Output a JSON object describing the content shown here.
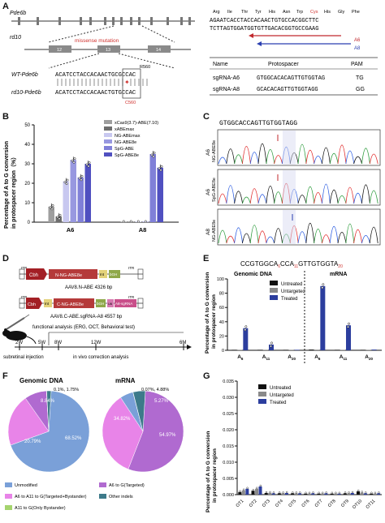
{
  "labels": {
    "a": "A",
    "b": "B",
    "c": "C",
    "d": "D",
    "e": "E",
    "f": "F",
    "g": "G"
  },
  "panel_a": {
    "gene": "Pde6b",
    "allele": "rd10",
    "mutation_label": "missense mutation",
    "exons": [
      "12",
      "13",
      "14"
    ],
    "wt_label": "WT-Pde6b",
    "rd10_label": "rd10-Pde6b",
    "wt_seq": "ACATCCTACCACAACTGCGCCAC",
    "rd10_seq": "ACATCCTACCACAACTGTGCCAC",
    "r560": "R560",
    "c560": "C560",
    "aa": [
      "Arg",
      "Ile",
      "Thr",
      "Tyr",
      "His",
      "Asn",
      "Trp",
      "Cys",
      "His",
      "Gly",
      "Phe"
    ],
    "seq_top": "AGAATCACCTACCACAACTGTGCCACGGCTTC",
    "seq_bot": "TCTTAGTGGATGGTGTTGACACGGTGCCGAAG",
    "guide_a6": "A6",
    "guide_a8": "A8",
    "table_headers": [
      "Name",
      "Protospacer",
      "PAM"
    ],
    "table_rows": [
      {
        "name": "sgRNA-A6",
        "protospacer": "GTGGCACACAGTTGTGGTAG",
        "pam": "TG"
      },
      {
        "name": "sgRNA-A8",
        "protospacer": "GCACACAGTTGTGGTAGG",
        "pam": "GG"
      }
    ]
  },
  "panel_b": {
    "ylabel_1": "Percentage of A to G conversion",
    "ylabel_2": "in protospacer region（%）",
    "yticks": [
      "0",
      "10",
      "20",
      "30",
      "40",
      "50"
    ],
    "groups": [
      "A6",
      "A8"
    ],
    "legend": [
      "xCas9(3.7)-ABE(7.10)",
      "xABEmax",
      "NG-ABEmax",
      "NG-ABE8e",
      "SpG-ABE",
      "SpG-ABE8e"
    ],
    "colors": [
      "#9e9e9e",
      "#6e6e6e",
      "#c8c8f0",
      "#9898e0",
      "#8080d8",
      "#5050c0"
    ]
  },
  "panel_c": {
    "seq": "GTGGCACCAGTTGTGGTAGG",
    "rows": [
      {
        "group": "A6",
        "name": "NG-ABE8e"
      },
      {
        "group": "A6",
        "name": "SpG-ABE8e"
      },
      {
        "group": "A8",
        "name": "NG-ABE8e"
      }
    ]
  },
  "panel_d": {
    "itr": "ITR",
    "cbh": "Cbh",
    "vec1_parts": [
      "N-NG-ABE8e",
      "Int",
      "bGH"
    ],
    "vec1_caption": "AAV8.N-ABE 4326 bp",
    "vec2_parts": [
      "Int",
      "C-NG-ABE8e",
      "bGH",
      "U6",
      "A8-sgRNA"
    ],
    "vec2_caption": "AAV8.C-ABE.sgRNA-A8 4557 bp",
    "analysis": "functional analysis (ERG, OCT, Behavioral test)",
    "timepoints": [
      "2W",
      "5W",
      "8W",
      "12W",
      "6M"
    ],
    "injection": "subretinal injection",
    "in_vivo": "in vivo correction analysis"
  },
  "panel_e": {
    "seq_prefix": "CCGTGGCA",
    "seq_sub1": "6",
    "seq_mid": "CCA",
    "seq_sub2": "11",
    "seq_mid2": "GTTGTGGTA",
    "seq_sub3": "20",
    "title_dna": "Genomic DNA",
    "title_rna": "mRNA",
    "ylabel_1": "Percentage of A to G conversion",
    "ylabel_2": "in protospacer region",
    "yticks": [
      "0",
      "20",
      "40",
      "60",
      "80",
      "100"
    ],
    "xgroups": [
      "A6",
      "A11",
      "A20",
      "A6",
      "A11",
      "A20"
    ],
    "legend": [
      "Untreated",
      "Untargeted",
      "Treated"
    ],
    "colors": [
      "#111111",
      "#8a8a8a",
      "#2c3e9e"
    ]
  },
  "panel_f": {
    "title_dna": "Genomic DNA",
    "title_rna": "mRNA",
    "dna_pcts": [
      "68.52%",
      "20.79%",
      "8.84%",
      "0.1%, 1.75%"
    ],
    "rna_pcts": [
      "54.97%",
      "34.82%",
      "5.27%",
      "0.07%, 4.88%"
    ],
    "legend": [
      "Unmodified",
      "A6 to G(Targeted)",
      "A6 to A11 to G(Targeted+Bystander)",
      "A11 to G(Only Bystander)",
      "Other indels"
    ],
    "colors": [
      "#7aa0d8",
      "#b06ad0",
      "#e884e8",
      "#a5d46e",
      "#3d7a8a"
    ]
  },
  "panel_g": {
    "ylabel_1": "Percentage of A to G conversion",
    "ylabel_2": "in protospacer region",
    "yticks": [
      "0.000",
      "0.005",
      "0.010",
      "0.015",
      "0.020",
      "0.025",
      "0.030",
      "0.035"
    ],
    "xgroups": [
      "OT1",
      "OT2",
      "OT3",
      "OT4",
      "OT5",
      "OT6",
      "OT7",
      "OT8",
      "OT9",
      "OT10",
      "OT11"
    ],
    "legend": [
      "Untreated",
      "Untargeted",
      "Treated"
    ],
    "colors": [
      "#111111",
      "#8a8a8a",
      "#2c3e9e"
    ]
  },
  "chart_data": [
    {
      "type": "bar",
      "categories": [
        "A6",
        "A8"
      ],
      "ylim": [
        0,
        50
      ],
      "series": [
        {
          "name": "xCas9(3.7)-ABE(7.10)",
          "values": [
            8,
            0
          ]
        },
        {
          "name": "xABEmax",
          "values": [
            3,
            0
          ]
        },
        {
          "name": "NG-ABEmax",
          "values": [
            21,
            0
          ]
        },
        {
          "name": "NG-ABE8e",
          "values": [
            32,
            0
          ]
        },
        {
          "name": "SpG-ABE",
          "values": [
            23,
            35
          ]
        },
        {
          "name": "SpG-ABE8e",
          "values": [
            30,
            28
          ]
        }
      ]
    },
    {
      "type": "bar",
      "categories": [
        "A6",
        "A11",
        "A20",
        "A6",
        "A11",
        "A20"
      ],
      "ylim": [
        0,
        100
      ],
      "series": [
        {
          "name": "Untreated",
          "values": [
            0.3,
            0.2,
            0.2,
            1,
            0.5,
            0.3
          ]
        },
        {
          "name": "Untargeted",
          "values": [
            0.3,
            0.2,
            0.2,
            0.8,
            0.4,
            0.3
          ]
        },
        {
          "name": "Treated",
          "values": [
            31,
            8,
            0.5,
            90,
            35,
            1
          ]
        }
      ]
    },
    {
      "type": "pie",
      "title": "Genomic DNA",
      "categories": [
        "Unmodified",
        "A6 to A11 to G(Targeted+Bystander)",
        "A6 to G(Targeted)",
        "A11 to G(Only Bystander)",
        "Other indels"
      ],
      "values": [
        68.52,
        20.79,
        8.84,
        0.1,
        1.75
      ]
    },
    {
      "type": "pie",
      "title": "mRNA",
      "categories": [
        "A6 to G(Targeted)",
        "A6 to A11 to G(Targeted+Bystander)",
        "Unmodified",
        "A11 to G(Only Bystander)",
        "Other indels"
      ],
      "values": [
        54.97,
        34.82,
        5.27,
        0.07,
        4.88
      ]
    },
    {
      "type": "bar",
      "categories": [
        "OT1",
        "OT2",
        "OT3",
        "OT4",
        "OT5",
        "OT6",
        "OT7",
        "OT8",
        "OT9",
        "OT10",
        "OT11"
      ],
      "ylim": [
        0,
        0.035
      ],
      "series": [
        {
          "name": "Untreated",
          "values": [
            0.0008,
            0.0012,
            0.0005,
            0.0004,
            0.0004,
            0.0003,
            0.0003,
            0.0003,
            0.0004,
            0.001,
            0.0003
          ]
        },
        {
          "name": "Untargeted",
          "values": [
            0.0013,
            0.0018,
            0.0005,
            0.0004,
            0.0004,
            0.0003,
            0.0003,
            0.0003,
            0.0004,
            0.0006,
            0.0003
          ]
        },
        {
          "name": "Treated",
          "values": [
            0.0018,
            0.0025,
            0.0004,
            0.0005,
            0.0004,
            0.0004,
            0.0004,
            0.0003,
            0.0005,
            0.0004,
            0.0004
          ]
        }
      ]
    }
  ]
}
